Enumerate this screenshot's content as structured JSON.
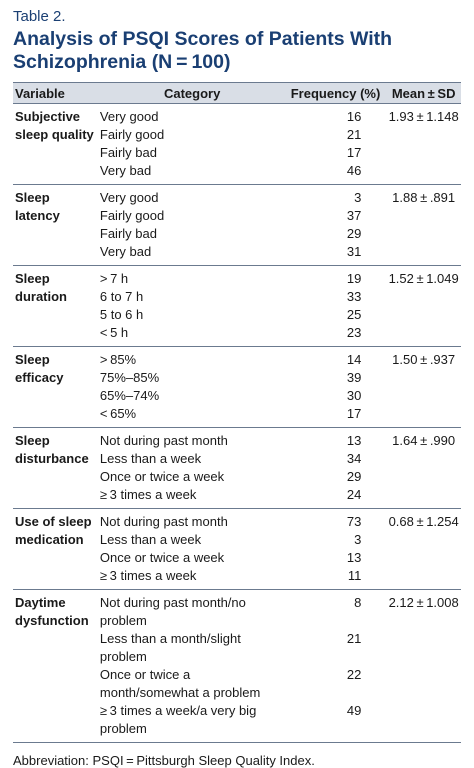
{
  "table_label": "Table 2.",
  "title": "Analysis of PSQI Scores of Patients With Schizophrenia (N = 100)",
  "headers": {
    "variable": "Variable",
    "category": "Category",
    "frequency": "Frequency (%)",
    "mean": "Mean ± SD"
  },
  "groups": [
    {
      "variable": "Subjective sleep quality",
      "mean": "1.93 ± 1.148",
      "rows": [
        {
          "category": "Very good",
          "frequency": "16"
        },
        {
          "category": "Fairly good",
          "frequency": "21"
        },
        {
          "category": "Fairly bad",
          "frequency": "17"
        },
        {
          "category": "Very bad",
          "frequency": "46"
        }
      ]
    },
    {
      "variable": "Sleep latency",
      "mean": "1.88 ± .891",
      "rows": [
        {
          "category": "Very good",
          "frequency": "3"
        },
        {
          "category": "Fairly good",
          "frequency": "37"
        },
        {
          "category": "Fairly bad",
          "frequency": "29"
        },
        {
          "category": "Very bad",
          "frequency": "31"
        }
      ]
    },
    {
      "variable": "Sleep duration",
      "mean": "1.52 ± 1.049",
      "rows": [
        {
          "category": "> 7 h",
          "frequency": "19"
        },
        {
          "category": "6 to 7 h",
          "frequency": "33"
        },
        {
          "category": "5 to 6 h",
          "frequency": "25"
        },
        {
          "category": "< 5 h",
          "frequency": "23"
        }
      ]
    },
    {
      "variable": "Sleep efficacy",
      "mean": "1.50 ± .937",
      "rows": [
        {
          "category": "> 85%",
          "frequency": "14"
        },
        {
          "category": "75%–85%",
          "frequency": "39"
        },
        {
          "category": "65%–74%",
          "frequency": "30"
        },
        {
          "category": "< 65%",
          "frequency": "17"
        }
      ]
    },
    {
      "variable": "Sleep disturbance",
      "mean": "1.64 ± .990",
      "rows": [
        {
          "category": "Not during past month",
          "frequency": "13"
        },
        {
          "category": "Less than a week",
          "frequency": "34"
        },
        {
          "category": "Once or twice a week",
          "frequency": "29"
        },
        {
          "category": "≥ 3 times a week",
          "frequency": "24"
        }
      ]
    },
    {
      "variable": "Use of sleep medication",
      "mean": "0.68 ± 1.254",
      "rows": [
        {
          "category": "Not during past month",
          "frequency": "73"
        },
        {
          "category": "Less than a week",
          "frequency": "3"
        },
        {
          "category": "Once or twice a week",
          "frequency": "13"
        },
        {
          "category": "≥ 3 times a week",
          "frequency": "11"
        }
      ]
    },
    {
      "variable": "Daytime dysfunction",
      "mean": "2.12 ± 1.008",
      "rows": [
        {
          "category": "Not during past month/no problem",
          "frequency": "8"
        },
        {
          "category": "Less than a month/slight problem",
          "frequency": "21"
        },
        {
          "category": "Once or twice a month/somewhat a problem",
          "frequency": "22"
        },
        {
          "category": "≥ 3 times a week/a very big problem",
          "frequency": "49"
        }
      ]
    }
  ],
  "footnote": "Abbreviation: PSQI = Pittsburgh Sleep Quality Index."
}
